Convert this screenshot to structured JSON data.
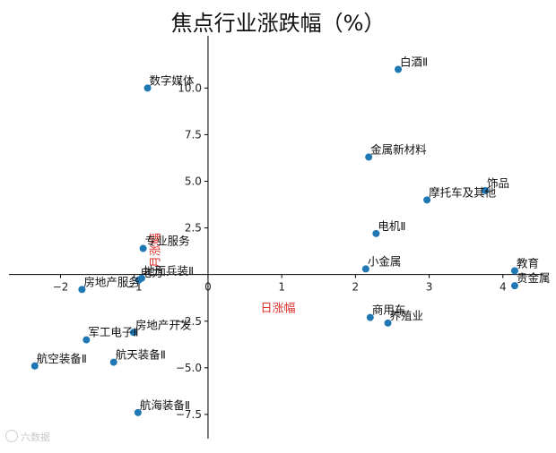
{
  "chart_data": {
    "type": "scatter",
    "title": "焦点行业涨跌幅（%）",
    "xlabel": "日涨幅",
    "ylabel": "月涨幅",
    "xlim": [
      -2.7,
      4.55
    ],
    "ylim": [
      -8.8,
      12.8
    ],
    "xticks": [
      -2,
      -1,
      0,
      1,
      2,
      3,
      4
    ],
    "yticks": [
      -7.5,
      -5.0,
      -2.5,
      2.5,
      5.0,
      7.5,
      10.0
    ],
    "ytick_labels": [
      "−7.5",
      "−5.0",
      "−2.5",
      "2.5",
      "5.0",
      "7.5",
      "10.0"
    ],
    "xtick_labels": [
      "−2",
      "−1",
      "0",
      "1",
      "2",
      "3",
      "4"
    ],
    "grid": false,
    "marker_color": "#1f77b4",
    "points": [
      {
        "label": "白酒Ⅱ",
        "x": 2.58,
        "y": 11.0
      },
      {
        "label": "数字媒体",
        "x": -0.82,
        "y": 10.0
      },
      {
        "label": "金属新材料",
        "x": 2.18,
        "y": 6.3
      },
      {
        "label": "饰品",
        "x": 3.76,
        "y": 4.5
      },
      {
        "label": "摩托车及其他",
        "x": 2.97,
        "y": 4.0
      },
      {
        "label": "电机Ⅱ",
        "x": 2.28,
        "y": 2.2
      },
      {
        "label": "专业服务",
        "x": -0.88,
        "y": 1.4
      },
      {
        "label": "小金属",
        "x": 2.14,
        "y": 0.3
      },
      {
        "label": "教育",
        "x": 4.16,
        "y": 0.2
      },
      {
        "label": "贵金属",
        "x": 4.16,
        "y": -0.6
      },
      {
        "label": "电力",
        "x": -0.94,
        "y": -0.3
      },
      {
        "label": "地面兵装Ⅱ",
        "x": -0.9,
        "y": -0.2
      },
      {
        "label": "房地产服务",
        "x": -1.71,
        "y": -0.8
      },
      {
        "label": "商用车",
        "x": 2.2,
        "y": -2.3
      },
      {
        "label": "养殖业",
        "x": 2.44,
        "y": -2.6
      },
      {
        "label": "房地产开发",
        "x": -1.01,
        "y": -3.1
      },
      {
        "label": "军工电子Ⅱ",
        "x": -1.65,
        "y": -3.5
      },
      {
        "label": "航天装备Ⅱ",
        "x": -1.28,
        "y": -4.7
      },
      {
        "label": "航空装备Ⅱ",
        "x": -2.35,
        "y": -4.9
      },
      {
        "label": "航海装备Ⅱ",
        "x": -0.95,
        "y": -7.4
      }
    ]
  },
  "watermark": "六数据"
}
